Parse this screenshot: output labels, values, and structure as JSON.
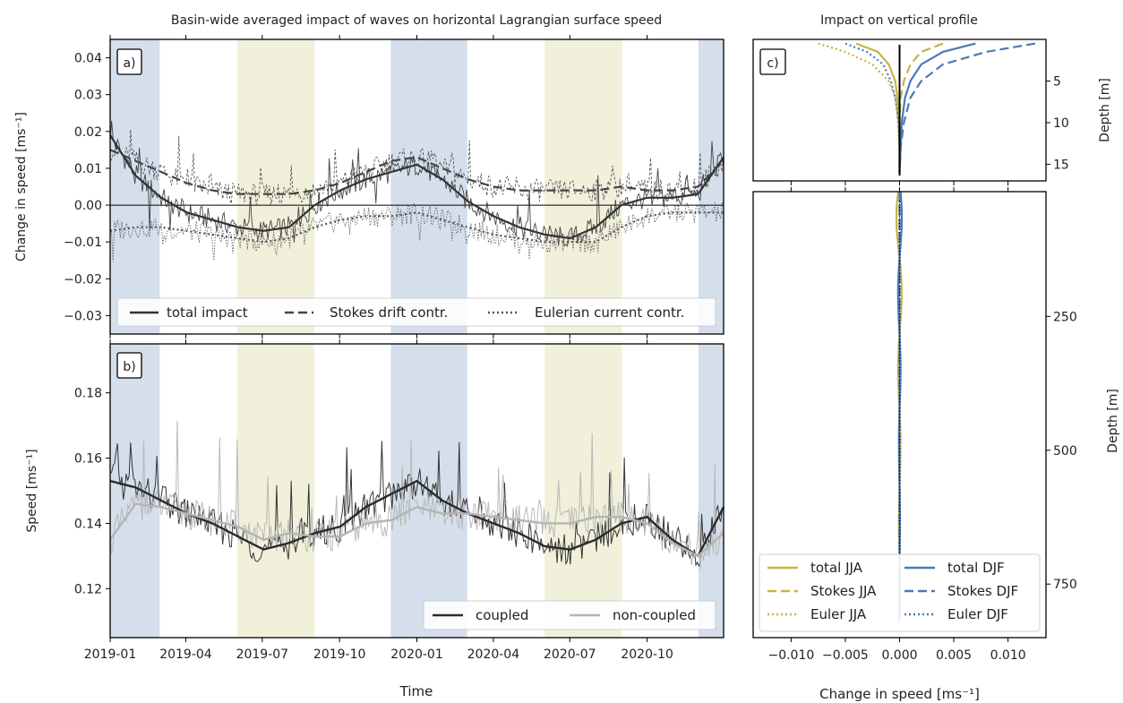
{
  "figure": {
    "title_left": "Basin-wide averaged impact of waves on horizontal Lagrangian surface speed",
    "title_right": "Impact on vertical profile",
    "xlabel_time": "Time",
    "time_ticks": [
      "2019-01",
      "2019-04",
      "2019-07",
      "2019-10",
      "2020-01",
      "2020-04",
      "2020-07",
      "2020-10"
    ]
  },
  "chart_data": [
    {
      "panel": "a)",
      "type": "line",
      "title": "Basin-wide averaged impact of waves on horizontal Lagrangian surface speed",
      "ylabel": "Change in speed [ms⁻¹]",
      "xlabel": "Time",
      "xlim": [
        "2019-01-01",
        "2020-12-31"
      ],
      "ylim": [
        -0.035,
        0.045
      ],
      "yticks": [
        "0.04",
        "0.03",
        "0.02",
        "0.01",
        "0.00",
        "−0.01",
        "−0.02",
        "−0.03"
      ],
      "ytick_values": [
        0.04,
        0.03,
        0.02,
        0.01,
        0.0,
        -0.01,
        -0.02,
        -0.03
      ],
      "zero_line": true,
      "legend": {
        "placement": "bottom",
        "entries": [
          "total impact",
          "Stokes drift contr.",
          "Eulerian current contr."
        ]
      },
      "shading": [
        {
          "season": "DJF",
          "color": "#c5d4e4",
          "from": "2019-01-01",
          "to": "2019-03-01"
        },
        {
          "season": "JJA",
          "color": "#ecebcf",
          "from": "2019-06-01",
          "to": "2019-09-01"
        },
        {
          "season": "DJF",
          "color": "#c5d4e4",
          "from": "2019-12-01",
          "to": "2020-03-01"
        },
        {
          "season": "JJA",
          "color": "#ecebcf",
          "from": "2020-06-01",
          "to": "2020-09-01"
        },
        {
          "season": "DJF",
          "color": "#c5d4e4",
          "from": "2020-12-01",
          "to": "2020-12-31"
        }
      ],
      "x_months": [
        0,
        1,
        2,
        3,
        4,
        5,
        6,
        7,
        8,
        9,
        10,
        11,
        12,
        13,
        14,
        15,
        16,
        17,
        18,
        19,
        20,
        21,
        22,
        23,
        24
      ],
      "series": [
        {
          "name": "total impact",
          "style": "solid",
          "color": "#333333",
          "values": [
            0.019,
            0.008,
            0.002,
            -0.002,
            -0.004,
            -0.006,
            -0.007,
            -0.006,
            0.0,
            0.004,
            0.007,
            0.009,
            0.011,
            0.007,
            0.001,
            -0.003,
            -0.006,
            -0.008,
            -0.009,
            -0.006,
            0.0,
            0.002,
            0.002,
            0.003,
            0.013
          ]
        },
        {
          "name": "Stokes drift contr.",
          "style": "dashed",
          "color": "#444444",
          "values": [
            0.015,
            0.012,
            0.009,
            0.006,
            0.004,
            0.003,
            0.003,
            0.003,
            0.004,
            0.006,
            0.009,
            0.012,
            0.013,
            0.01,
            0.007,
            0.005,
            0.004,
            0.004,
            0.004,
            0.004,
            0.005,
            0.004,
            0.004,
            0.005,
            0.012
          ]
        },
        {
          "name": "Eulerian current contr.",
          "style": "dotted",
          "color": "#555555",
          "values": [
            -0.007,
            -0.006,
            -0.006,
            -0.007,
            -0.008,
            -0.009,
            -0.01,
            -0.009,
            -0.006,
            -0.004,
            -0.003,
            -0.003,
            -0.002,
            -0.004,
            -0.006,
            -0.008,
            -0.009,
            -0.01,
            -0.01,
            -0.01,
            -0.006,
            -0.003,
            -0.002,
            -0.002,
            -0.002
          ]
        }
      ]
    },
    {
      "panel": "b)",
      "type": "line",
      "ylabel": "Speed [ms⁻¹]",
      "xlabel": "Time",
      "xlim": [
        "2019-01-01",
        "2020-12-31"
      ],
      "ylim": [
        0.105,
        0.195
      ],
      "yticks": [
        "0.18",
        "0.16",
        "0.14",
        "0.12"
      ],
      "ytick_values": [
        0.18,
        0.16,
        0.14,
        0.12
      ],
      "legend": {
        "placement": "bottom-right",
        "entries": [
          "coupled",
          "non-coupled"
        ]
      },
      "x_months": [
        0,
        1,
        2,
        3,
        4,
        5,
        6,
        7,
        8,
        9,
        10,
        11,
        12,
        13,
        14,
        15,
        16,
        17,
        18,
        19,
        20,
        21,
        22,
        23,
        24
      ],
      "series": [
        {
          "name": "coupled",
          "color": "#2b2b2b",
          "values": [
            0.153,
            0.151,
            0.147,
            0.143,
            0.14,
            0.136,
            0.132,
            0.134,
            0.137,
            0.139,
            0.145,
            0.149,
            0.153,
            0.147,
            0.143,
            0.14,
            0.137,
            0.133,
            0.132,
            0.135,
            0.14,
            0.142,
            0.135,
            0.13,
            0.145
          ]
        },
        {
          "name": "non-coupled",
          "color": "#b5b5b5",
          "values": [
            0.135,
            0.146,
            0.145,
            0.143,
            0.141,
            0.139,
            0.135,
            0.137,
            0.136,
            0.136,
            0.14,
            0.141,
            0.145,
            0.143,
            0.143,
            0.142,
            0.141,
            0.14,
            0.14,
            0.142,
            0.142,
            0.14,
            0.134,
            0.13,
            0.137
          ]
        }
      ]
    },
    {
      "panel": "c)",
      "type": "line",
      "title": "Impact on vertical profile",
      "xlabel": "Change in speed [ms⁻¹]",
      "ylabel": "Depth [m]",
      "xlim": [
        -0.0135,
        0.0135
      ],
      "xticks": [
        "−0.010",
        "−0.005",
        "0.000",
        "0.005",
        "0.010"
      ],
      "xtick_values": [
        -0.01,
        -0.005,
        0.0,
        0.005,
        0.01
      ],
      "upper": {
        "ylim": [
          0,
          17
        ],
        "yticks": [
          "5",
          "10",
          "15"
        ],
        "ytick_values": [
          5,
          10,
          15
        ]
      },
      "lower": {
        "ylim": [
          17,
          850
        ],
        "yticks": [
          "250",
          "500",
          "750"
        ],
        "ytick_values": [
          250,
          500,
          750
        ]
      },
      "legend": {
        "placement": "bottom",
        "entries": [
          "total JJA",
          "Stokes JJA",
          "Euler JJA",
          "total DJF",
          "Stokes DJF",
          "Euler DJF"
        ]
      },
      "series": [
        {
          "name": "total JJA",
          "style": "solid",
          "color": "#c8b442",
          "depth": [
            0.5,
            1.5,
            3,
            5,
            7,
            10,
            13,
            16
          ],
          "values": [
            -0.004,
            -0.002,
            -0.001,
            -0.0004,
            -0.0002,
            -0.0001,
            0,
            0
          ]
        },
        {
          "name": "Stokes JJA",
          "style": "dashed",
          "color": "#c8b442",
          "depth": [
            0.5,
            1.5,
            3,
            5,
            7,
            10,
            13,
            16
          ],
          "values": [
            0.004,
            0.002,
            0.001,
            0.0004,
            0.0001,
            0,
            0,
            0
          ]
        },
        {
          "name": "Euler JJA",
          "style": "dotted",
          "color": "#c8b442",
          "depth": [
            0.5,
            1.5,
            3,
            5,
            7,
            10,
            13,
            16
          ],
          "values": [
            -0.0075,
            -0.005,
            -0.0025,
            -0.001,
            -0.0004,
            -0.0001,
            0,
            0
          ]
        },
        {
          "name": "total DJF",
          "style": "solid",
          "color": "#4a7ab5",
          "depth": [
            0.5,
            1.5,
            3,
            5,
            7,
            10,
            13,
            16
          ],
          "values": [
            0.007,
            0.004,
            0.002,
            0.001,
            0.0005,
            0.0002,
            0.0001,
            0
          ]
        },
        {
          "name": "Stokes DJF",
          "style": "dashed",
          "color": "#4a7ab5",
          "depth": [
            0.5,
            1.5,
            3,
            5,
            7,
            10,
            13,
            16
          ],
          "values": [
            0.0125,
            0.008,
            0.004,
            0.002,
            0.001,
            0.0004,
            0.0001,
            0
          ]
        },
        {
          "name": "Euler DJF",
          "style": "dotted",
          "color": "#4a7ab5",
          "depth": [
            0.5,
            1.5,
            3,
            5,
            7,
            10,
            13,
            16
          ],
          "values": [
            -0.005,
            -0.003,
            -0.0015,
            -0.0008,
            -0.0004,
            -0.0001,
            0,
            0
          ]
        }
      ]
    }
  ]
}
